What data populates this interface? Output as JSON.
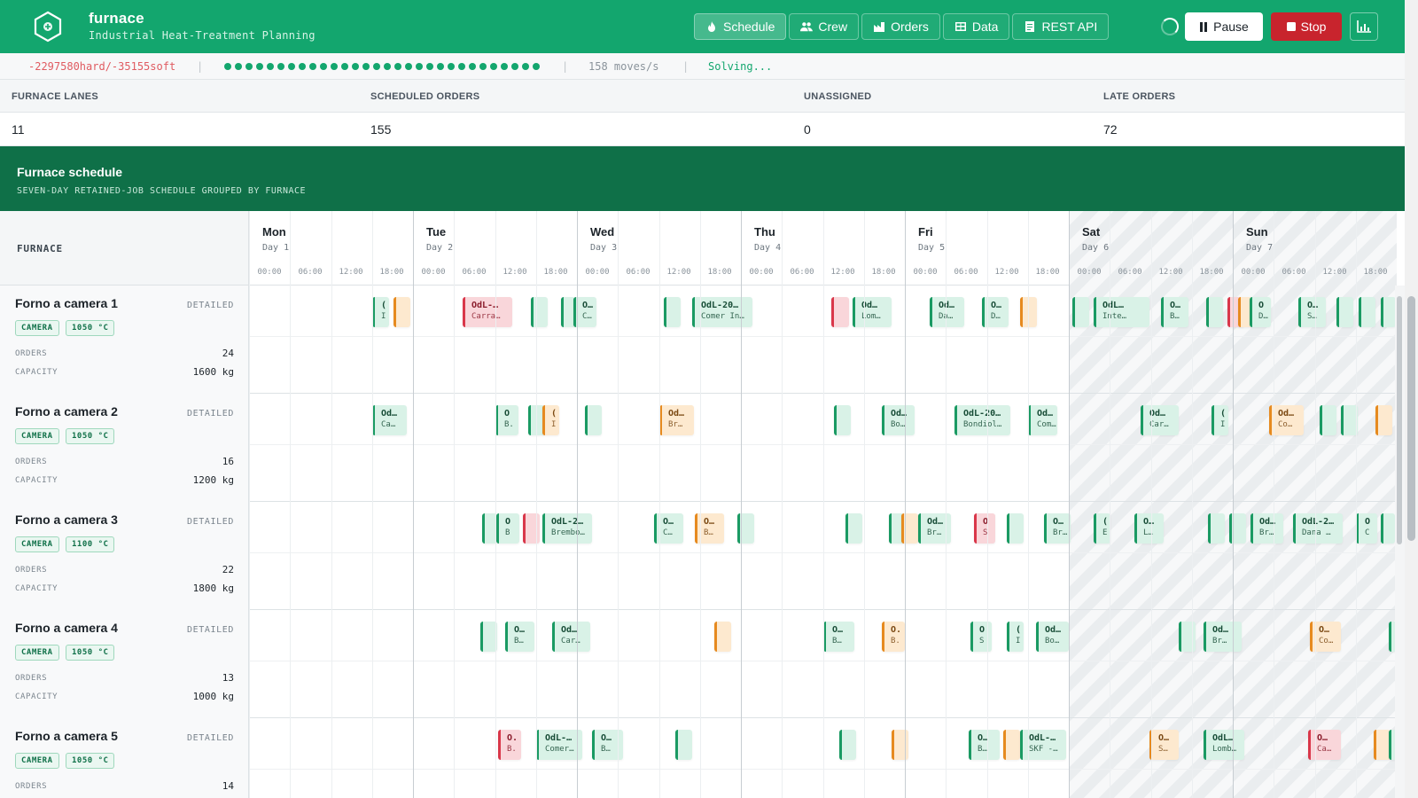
{
  "app": {
    "name": "furnace",
    "subtitle": "Industrial Heat-Treatment Planning"
  },
  "nav": [
    {
      "label": "Schedule",
      "icon": "flame-icon",
      "active": true
    },
    {
      "label": "Crew",
      "icon": "users-icon",
      "active": false
    },
    {
      "label": "Orders",
      "icon": "factory-icon",
      "active": false
    },
    {
      "label": "Data",
      "icon": "table-icon",
      "active": false
    },
    {
      "label": "REST API",
      "icon": "document-icon",
      "active": false
    }
  ],
  "controls": {
    "pause_label": "Pause",
    "stop_label": "Stop"
  },
  "status": {
    "score": "-2297580hard/-35155soft",
    "separator": "|",
    "rate": "158 moves/s",
    "state": "Solving..."
  },
  "summary": {
    "furnace_lanes": {
      "label": "FURNACE LANES",
      "value": "11"
    },
    "scheduled_orders": {
      "label": "SCHEDULED ORDERS",
      "value": "155"
    },
    "unassigned": {
      "label": "UNASSIGNED",
      "value": "0"
    },
    "late_orders": {
      "label": "LATE ORDERS",
      "value": "72"
    }
  },
  "schedule": {
    "title": "Furnace schedule",
    "subtitle": "SEVEN-DAY RETAINED-JOB SCHEDULE GROUPED BY FURNACE",
    "column_label": "FURNACE",
    "days": [
      {
        "name": "Mon",
        "num": "Day 1",
        "weekend": false
      },
      {
        "name": "Tue",
        "num": "Day 2",
        "weekend": false
      },
      {
        "name": "Wed",
        "num": "Day 3",
        "weekend": false
      },
      {
        "name": "Thu",
        "num": "Day 4",
        "weekend": false
      },
      {
        "name": "Fri",
        "num": "Day 5",
        "weekend": false
      },
      {
        "name": "Sat",
        "num": "Day 6",
        "weekend": true
      },
      {
        "name": "Sun",
        "num": "Day 7",
        "weekend": true
      }
    ],
    "hours": [
      "00:00",
      "06:00",
      "12:00",
      "18:00"
    ]
  },
  "labels": {
    "detailed": "DETAILED",
    "orders": "ORDERS",
    "capacity": "CAPACITY"
  },
  "furnaces": [
    {
      "name": "Forno a camera 1",
      "type": "CAMERA",
      "temp": "1050 °C",
      "orders": "24",
      "capacity": "1600 kg",
      "jobs": [
        {
          "start": 0.75,
          "dur": 0.1,
          "t": "(",
          "s": "I",
          "st": "ok"
        },
        {
          "start": 0.88,
          "dur": 0.1,
          "t": "",
          "s": "",
          "st": "warn"
        },
        {
          "start": 1.3,
          "dur": 0.3,
          "t": "OdL-…",
          "s": "Carra…",
          "st": "bad"
        },
        {
          "start": 1.72,
          "dur": 0.1,
          "t": "",
          "s": "",
          "st": "ok"
        },
        {
          "start": 1.9,
          "dur": 0.07,
          "t": "",
          "s": "",
          "st": "ok"
        },
        {
          "start": 1.98,
          "dur": 0.14,
          "t": "O…",
          "s": "C…",
          "st": "ok"
        },
        {
          "start": 2.53,
          "dur": 0.1,
          "t": "",
          "s": "",
          "st": "ok"
        },
        {
          "start": 2.7,
          "dur": 0.37,
          "t": "OdL-20…",
          "s": "Comer In…",
          "st": "ok"
        },
        {
          "start": 3.55,
          "dur": 0.11,
          "t": "",
          "s": "",
          "st": "bad"
        },
        {
          "start": 3.68,
          "dur": 0.24,
          "t": "Od…",
          "s": "Lom…",
          "st": "ok"
        },
        {
          "start": 4.15,
          "dur": 0.21,
          "t": "Od…",
          "s": "Da…",
          "st": "ok"
        },
        {
          "start": 4.47,
          "dur": 0.16,
          "t": "O…",
          "s": "D…",
          "st": "ok"
        },
        {
          "start": 4.7,
          "dur": 0.1,
          "t": "",
          "s": "",
          "st": "warn"
        },
        {
          "start": 5.02,
          "dur": 0.1,
          "t": "",
          "s": "",
          "st": "ok"
        },
        {
          "start": 5.15,
          "dur": 0.34,
          "t": "OdL…",
          "s": "Inte…",
          "st": "ok"
        },
        {
          "start": 5.56,
          "dur": 0.17,
          "t": "O…",
          "s": "B…",
          "st": "ok"
        },
        {
          "start": 5.84,
          "dur": 0.1,
          "t": "",
          "s": "",
          "st": "ok"
        },
        {
          "start": 5.97,
          "dur": 0.1,
          "t": "",
          "s": "",
          "st": "bad"
        },
        {
          "start": 6.03,
          "dur": 0.06,
          "t": "",
          "s": "",
          "st": "warn"
        },
        {
          "start": 6.1,
          "dur": 0.13,
          "t": "O",
          "s": "D…",
          "st": "ok"
        },
        {
          "start": 6.4,
          "dur": 0.17,
          "t": "O…",
          "s": "S…",
          "st": "ok"
        },
        {
          "start": 6.63,
          "dur": 0.1,
          "t": "",
          "s": "",
          "st": "ok"
        },
        {
          "start": 6.77,
          "dur": 0.1,
          "t": "",
          "s": "",
          "st": "ok"
        },
        {
          "start": 6.9,
          "dur": 0.1,
          "t": "",
          "s": "",
          "st": "ok"
        }
      ]
    },
    {
      "name": "Forno a camera 2",
      "type": "CAMERA",
      "temp": "1050 °C",
      "orders": "16",
      "capacity": "1200 kg",
      "jobs": [
        {
          "start": 0.75,
          "dur": 0.21,
          "t": "Od…",
          "s": "Ca…",
          "st": "ok"
        },
        {
          "start": 1.5,
          "dur": 0.14,
          "t": "O",
          "s": "B.",
          "st": "ok"
        },
        {
          "start": 1.7,
          "dur": 0.1,
          "t": "",
          "s": "",
          "st": "ok"
        },
        {
          "start": 1.79,
          "dur": 0.1,
          "t": "(",
          "s": "I",
          "st": "warn"
        },
        {
          "start": 2.05,
          "dur": 0.1,
          "t": "",
          "s": "",
          "st": "ok"
        },
        {
          "start": 2.5,
          "dur": 0.21,
          "t": "Od…",
          "s": "Br…",
          "st": "warn"
        },
        {
          "start": 3.57,
          "dur": 0.1,
          "t": "",
          "s": "",
          "st": "ok"
        },
        {
          "start": 3.86,
          "dur": 0.2,
          "t": "Od…",
          "s": "Bo…",
          "st": "ok"
        },
        {
          "start": 4.3,
          "dur": 0.34,
          "t": "OdL-20…",
          "s": "Bondiol…",
          "st": "ok"
        },
        {
          "start": 4.75,
          "dur": 0.18,
          "t": "Od…",
          "s": "Com…",
          "st": "ok"
        },
        {
          "start": 5.44,
          "dur": 0.23,
          "t": "Od…",
          "s": "Car…",
          "st": "ok"
        },
        {
          "start": 5.87,
          "dur": 0.1,
          "t": "(",
          "s": "I",
          "st": "ok"
        },
        {
          "start": 6.22,
          "dur": 0.21,
          "t": "Od…",
          "s": "Co…",
          "st": "warn"
        },
        {
          "start": 6.53,
          "dur": 0.1,
          "t": "",
          "s": "",
          "st": "ok"
        },
        {
          "start": 6.66,
          "dur": 0.1,
          "t": "",
          "s": "",
          "st": "ok"
        },
        {
          "start": 6.87,
          "dur": 0.1,
          "t": "",
          "s": "",
          "st": "warn"
        }
      ]
    },
    {
      "name": "Forno a camera 3",
      "type": "CAMERA",
      "temp": "1100 °C",
      "orders": "22",
      "capacity": "1800 kg",
      "jobs": [
        {
          "start": 1.42,
          "dur": 0.09,
          "t": "",
          "s": "",
          "st": "ok"
        },
        {
          "start": 1.51,
          "dur": 0.14,
          "t": "O",
          "s": "B",
          "st": "ok"
        },
        {
          "start": 1.67,
          "dur": 0.1,
          "t": "",
          "s": "",
          "st": "bad"
        },
        {
          "start": 1.79,
          "dur": 0.3,
          "t": "OdL-2…",
          "s": "Brembo…",
          "st": "ok"
        },
        {
          "start": 2.47,
          "dur": 0.18,
          "t": "O…",
          "s": "C…",
          "st": "ok"
        },
        {
          "start": 2.72,
          "dur": 0.18,
          "t": "O…",
          "s": "B…",
          "st": "warn"
        },
        {
          "start": 2.98,
          "dur": 0.1,
          "t": "",
          "s": "",
          "st": "ok"
        },
        {
          "start": 3.64,
          "dur": 0.1,
          "t": "",
          "s": "",
          "st": "ok"
        },
        {
          "start": 3.9,
          "dur": 0.09,
          "t": "",
          "s": "",
          "st": "ok"
        },
        {
          "start": 3.98,
          "dur": 0.1,
          "t": "",
          "s": "",
          "st": "warn"
        },
        {
          "start": 4.08,
          "dur": 0.2,
          "t": "Od…",
          "s": "Br…",
          "st": "ok"
        },
        {
          "start": 4.42,
          "dur": 0.13,
          "t": "O",
          "s": "S",
          "st": "bad"
        },
        {
          "start": 4.62,
          "dur": 0.1,
          "t": "",
          "s": "",
          "st": "ok"
        },
        {
          "start": 4.85,
          "dur": 0.16,
          "t": "O…",
          "s": "Br…",
          "st": "ok"
        },
        {
          "start": 5.15,
          "dur": 0.1,
          "t": "(",
          "s": "E",
          "st": "ok"
        },
        {
          "start": 5.4,
          "dur": 0.18,
          "t": "O…",
          "s": "L…",
          "st": "ok"
        },
        {
          "start": 5.85,
          "dur": 0.1,
          "t": "",
          "s": "",
          "st": "ok"
        },
        {
          "start": 5.98,
          "dur": 0.1,
          "t": "",
          "s": "",
          "st": "ok"
        },
        {
          "start": 6.11,
          "dur": 0.2,
          "t": "Od…",
          "s": "Br…",
          "st": "ok"
        },
        {
          "start": 6.37,
          "dur": 0.3,
          "t": "OdL-2…",
          "s": "Dana …",
          "st": "ok"
        },
        {
          "start": 6.75,
          "dur": 0.13,
          "t": "O",
          "s": "C",
          "st": "ok"
        },
        {
          "start": 6.9,
          "dur": 0.07,
          "t": "",
          "s": "",
          "st": "ok"
        }
      ]
    },
    {
      "name": "Forno a camera 4",
      "type": "CAMERA",
      "temp": "1050 °C",
      "orders": "13",
      "capacity": "1000 kg",
      "jobs": [
        {
          "start": 1.41,
          "dur": 0.1,
          "t": "",
          "s": "",
          "st": "ok"
        },
        {
          "start": 1.56,
          "dur": 0.18,
          "t": "O…",
          "s": "B…",
          "st": "ok"
        },
        {
          "start": 1.85,
          "dur": 0.23,
          "t": "Od…",
          "s": "Car…",
          "st": "ok"
        },
        {
          "start": 2.84,
          "dur": 0.1,
          "t": "",
          "s": "",
          "st": "warn"
        },
        {
          "start": 3.5,
          "dur": 0.19,
          "t": "O…",
          "s": "B…",
          "st": "ok"
        },
        {
          "start": 3.86,
          "dur": 0.14,
          "t": "O.",
          "s": "B.",
          "st": "warn"
        },
        {
          "start": 4.4,
          "dur": 0.13,
          "t": "O",
          "s": "S",
          "st": "ok"
        },
        {
          "start": 4.62,
          "dur": 0.1,
          "t": "(",
          "s": "I",
          "st": "ok"
        },
        {
          "start": 4.8,
          "dur": 0.2,
          "t": "Od…",
          "s": "Bo…",
          "st": "ok"
        },
        {
          "start": 5.67,
          "dur": 0.1,
          "t": "",
          "s": "",
          "st": "ok"
        },
        {
          "start": 5.82,
          "dur": 0.23,
          "t": "Od…",
          "s": "Br…",
          "st": "ok"
        },
        {
          "start": 6.47,
          "dur": 0.19,
          "t": "O…",
          "s": "Co…",
          "st": "warn"
        },
        {
          "start": 6.95,
          "dur": 0.06,
          "t": "",
          "s": "",
          "st": "ok"
        }
      ]
    },
    {
      "name": "Forno a camera 5",
      "type": "CAMERA",
      "temp": "1050 °C",
      "orders": "14",
      "capacity": "",
      "jobs": [
        {
          "start": 1.52,
          "dur": 0.14,
          "t": "O.",
          "s": "B.",
          "st": "bad"
        },
        {
          "start": 1.75,
          "dur": 0.28,
          "t": "OdL-…",
          "s": "Comer…",
          "st": "ok"
        },
        {
          "start": 2.09,
          "dur": 0.19,
          "t": "O…",
          "s": "B…",
          "st": "ok"
        },
        {
          "start": 2.6,
          "dur": 0.1,
          "t": "",
          "s": "",
          "st": "ok"
        },
        {
          "start": 3.6,
          "dur": 0.1,
          "t": "",
          "s": "",
          "st": "ok"
        },
        {
          "start": 3.92,
          "dur": 0.1,
          "t": "",
          "s": "",
          "st": "warn"
        },
        {
          "start": 4.39,
          "dur": 0.19,
          "t": "O…",
          "s": "B…",
          "st": "ok"
        },
        {
          "start": 4.6,
          "dur": 0.1,
          "t": "",
          "s": "",
          "st": "warn"
        },
        {
          "start": 4.7,
          "dur": 0.28,
          "t": "OdL-…",
          "s": "SKF -…",
          "st": "ok"
        },
        {
          "start": 5.49,
          "dur": 0.18,
          "t": "O…",
          "s": "S…",
          "st": "warn"
        },
        {
          "start": 5.82,
          "dur": 0.25,
          "t": "OdL…",
          "s": "Lomb…",
          "st": "ok"
        },
        {
          "start": 6.46,
          "dur": 0.2,
          "t": "O…",
          "s": "Ca…",
          "st": "bad"
        },
        {
          "start": 6.86,
          "dur": 0.1,
          "t": "",
          "s": "",
          "st": "warn"
        },
        {
          "start": 6.95,
          "dur": 0.06,
          "t": "",
          "s": "",
          "st": "ok"
        }
      ]
    }
  ],
  "colors": {
    "brand": "#13a66e",
    "brand_dark": "#0f7048",
    "stop": "#c8242d",
    "ok": "#1a9a63",
    "warn": "#e68a1f",
    "late": "#d9374a",
    "score": "#e05b61"
  }
}
